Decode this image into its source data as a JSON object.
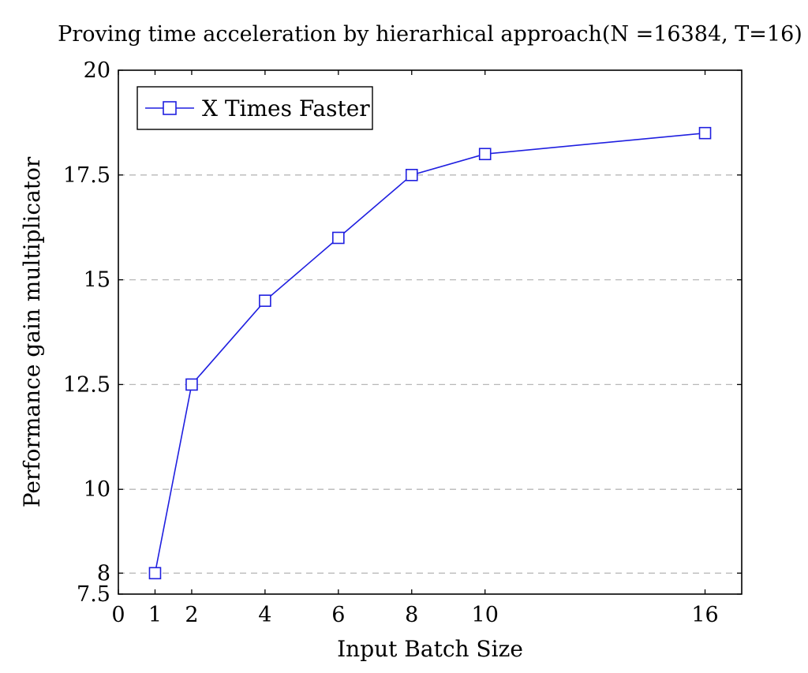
{
  "chart_data": {
    "type": "line",
    "title": "Proving time acceleration by hierarhical approach(N =16384, T=16)",
    "xlabel": "Input Batch Size",
    "ylabel": "Performance gain multiplicator",
    "xlim": [
      0,
      17
    ],
    "ylim": [
      7.5,
      20
    ],
    "xticks": [
      0,
      1,
      2,
      4,
      6,
      8,
      10,
      16
    ],
    "xtick_labels": [
      "0",
      "1",
      "2",
      "4",
      "6",
      "8",
      "10",
      "16"
    ],
    "yticks": [
      7.5,
      8,
      10,
      12.5,
      15,
      17.5,
      20
    ],
    "ytick_labels": [
      "7.5",
      "8",
      "10",
      "12.5",
      "15",
      "17.5",
      "20"
    ],
    "grid": "horizontal dashed",
    "legend_position": "top-left",
    "series": [
      {
        "name": "X Times Faster",
        "color": "#1f1fe0",
        "marker": "square",
        "x": [
          1,
          2,
          4,
          6,
          8,
          10,
          16
        ],
        "y": [
          8,
          12.5,
          14.5,
          16,
          17.5,
          18,
          18.5
        ]
      }
    ]
  }
}
